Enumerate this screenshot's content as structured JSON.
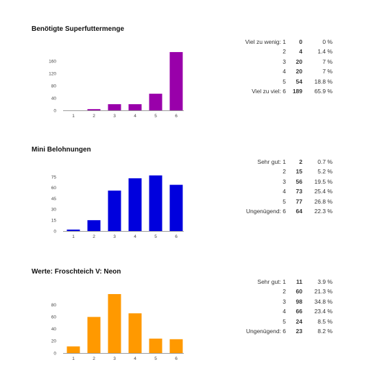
{
  "chart_data": [
    {
      "type": "bar",
      "title": "Benötigte Superfuttermenge",
      "categories": [
        "1",
        "2",
        "3",
        "4",
        "5",
        "6"
      ],
      "values": [
        0,
        4,
        20,
        20,
        54,
        189
      ],
      "ylim": [
        0,
        180
      ],
      "yticks": [
        0,
        40,
        80,
        120,
        160
      ],
      "color": "#9900aa",
      "xlabel": "",
      "ylabel": "",
      "table": [
        {
          "label": "Viel zu wenig: 1",
          "count": "0",
          "percent": "0 %"
        },
        {
          "label": "2",
          "count": "4",
          "percent": "1.4 %"
        },
        {
          "label": "3",
          "count": "20",
          "percent": "7 %"
        },
        {
          "label": "4",
          "count": "20",
          "percent": "7 %"
        },
        {
          "label": "5",
          "count": "54",
          "percent": "18.8 %"
        },
        {
          "label": "Viel zu viel: 6",
          "count": "189",
          "percent": "65.9 %"
        }
      ]
    },
    {
      "type": "bar",
      "title": "Mini Belohnungen",
      "categories": [
        "1",
        "2",
        "3",
        "4",
        "5",
        "6"
      ],
      "values": [
        2,
        15,
        56,
        73,
        77,
        64
      ],
      "ylim": [
        0,
        75
      ],
      "yticks": [
        0,
        15,
        30,
        45,
        60,
        75
      ],
      "color": "#0000dd",
      "xlabel": "",
      "ylabel": "",
      "table": [
        {
          "label": "Sehr gut: 1",
          "count": "2",
          "percent": "0.7 %"
        },
        {
          "label": "2",
          "count": "15",
          "percent": "5.2 %"
        },
        {
          "label": "3",
          "count": "56",
          "percent": "19.5 %"
        },
        {
          "label": "4",
          "count": "73",
          "percent": "25.4 %"
        },
        {
          "label": "5",
          "count": "77",
          "percent": "26.8 %"
        },
        {
          "label": "Ungenügend: 6",
          "count": "64",
          "percent": "22.3 %"
        }
      ]
    },
    {
      "type": "bar",
      "title": "Werte: Froschteich V: Neon",
      "categories": [
        "1",
        "2",
        "3",
        "4",
        "5",
        "6"
      ],
      "values": [
        11,
        60,
        98,
        66,
        24,
        23
      ],
      "ylim": [
        0,
        90
      ],
      "yticks": [
        0,
        20,
        40,
        60,
        80
      ],
      "color": "#ff9900",
      "xlabel": "",
      "ylabel": "",
      "table": [
        {
          "label": "Sehr gut: 1",
          "count": "11",
          "percent": "3.9 %"
        },
        {
          "label": "2",
          "count": "60",
          "percent": "21.3 %"
        },
        {
          "label": "3",
          "count": "98",
          "percent": "34.8 %"
        },
        {
          "label": "4",
          "count": "66",
          "percent": "23.4 %"
        },
        {
          "label": "5",
          "count": "24",
          "percent": "8.5 %"
        },
        {
          "label": "Ungenügend: 6",
          "count": "23",
          "percent": "8.2 %"
        }
      ]
    }
  ]
}
